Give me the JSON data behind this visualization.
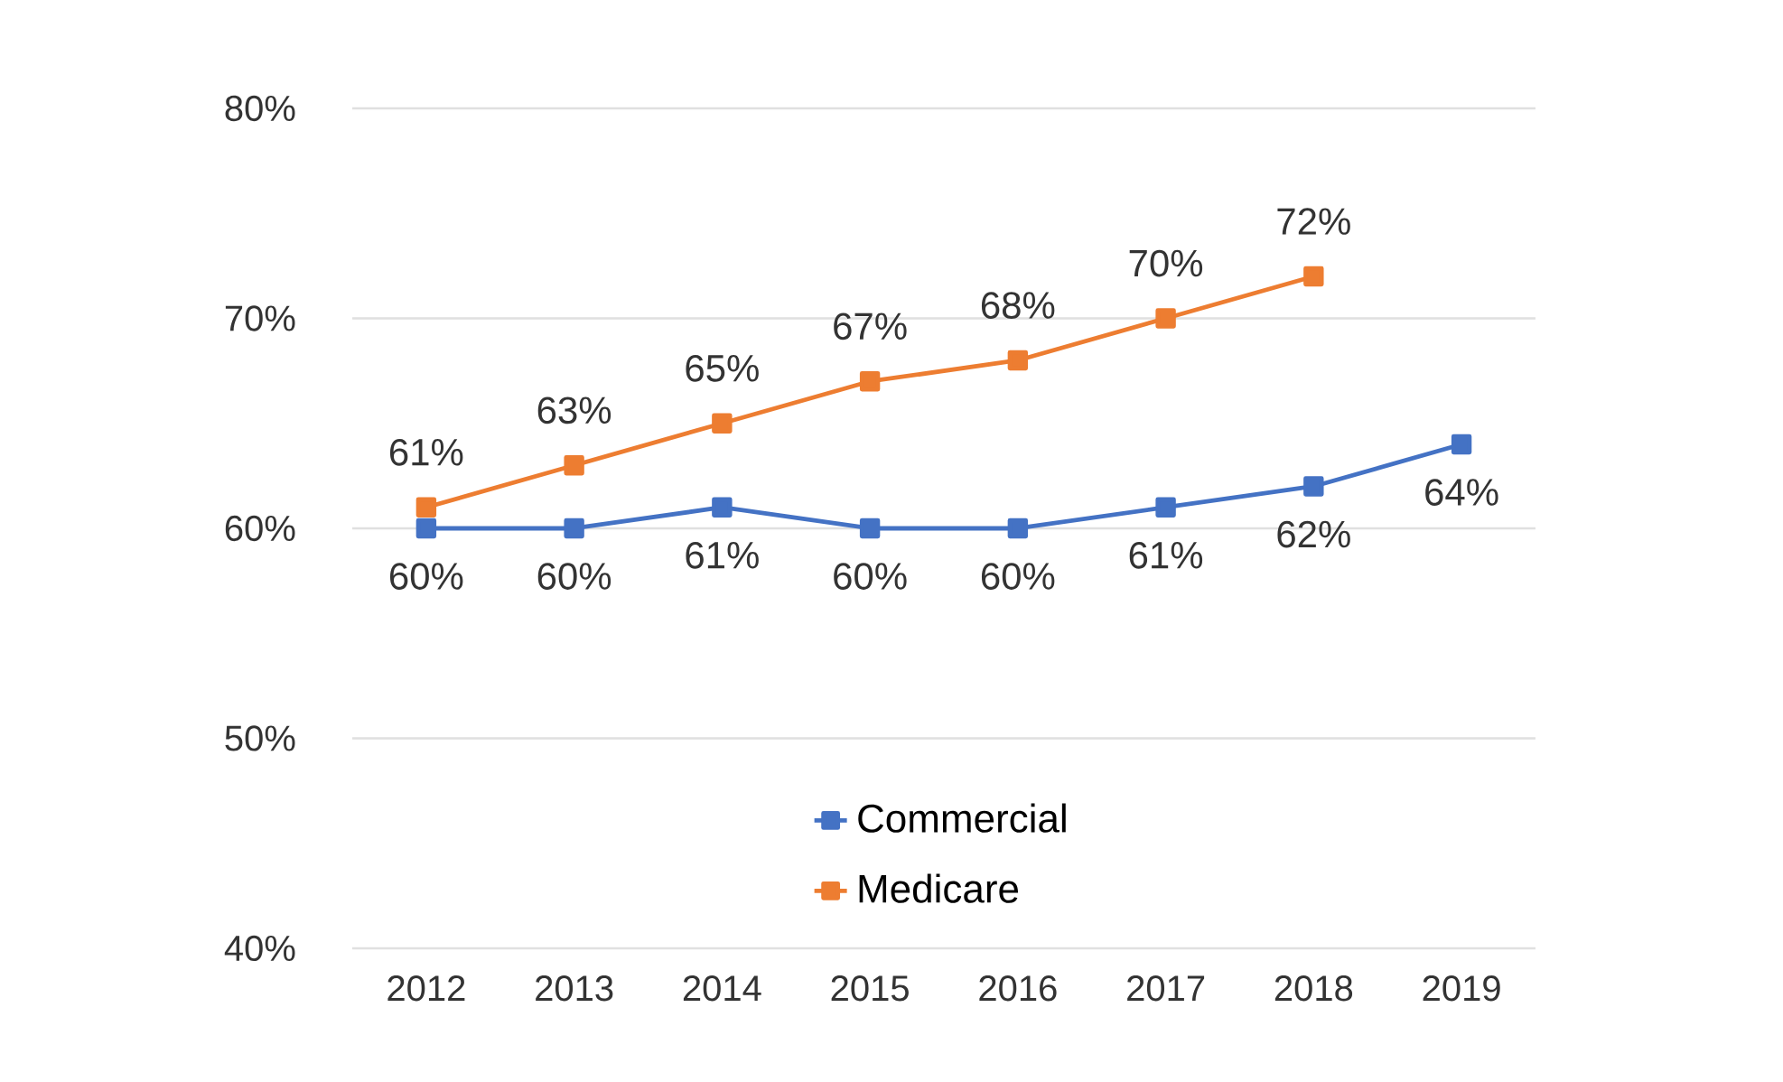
{
  "chart_data": {
    "type": "line",
    "categories": [
      "2012",
      "2013",
      "2014",
      "2015",
      "2016",
      "2017",
      "2018",
      "2019"
    ],
    "series": [
      {
        "name": "Commercial",
        "color": "#4472c4",
        "values": [
          60,
          60,
          61,
          60,
          60,
          61,
          62,
          64
        ],
        "value_labels": [
          "60%",
          "60%",
          "61%",
          "60%",
          "60%",
          "61%",
          "62%",
          "64%"
        ]
      },
      {
        "name": "Medicare",
        "color": "#ed7d31",
        "values": [
          61,
          63,
          65,
          67,
          68,
          70,
          72,
          null
        ],
        "value_labels": [
          "61%",
          "63%",
          "65%",
          "67%",
          "68%",
          "70%",
          "72%",
          null
        ]
      }
    ],
    "ylim": [
      40,
      80
    ],
    "yticks": [
      {
        "value": 40,
        "label": "40%"
      },
      {
        "value": 50,
        "label": "50%"
      },
      {
        "value": 60,
        "label": "60%"
      },
      {
        "value": 70,
        "label": "70%"
      },
      {
        "value": 80,
        "label": "80%"
      }
    ],
    "grid": "y",
    "legend": "bottom",
    "marker": "square",
    "line_style": "solid"
  }
}
